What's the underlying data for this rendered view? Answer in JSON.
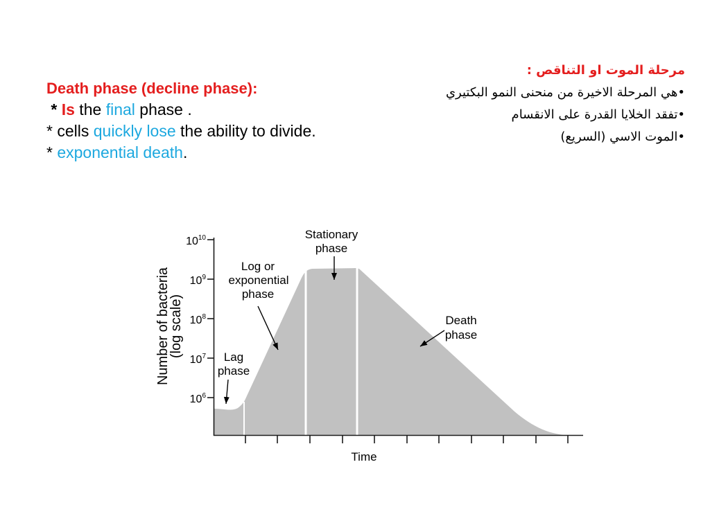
{
  "colors": {
    "emphasis_red": "#e41e1e",
    "highlight_blue": "#1da8df",
    "body_text": "#000000",
    "curve_fill": "#c1c1c1"
  },
  "english_notes": {
    "heading": "Death phase (decline phase):",
    "final_line": {
      "bullet": " * ",
      "keyword": "Is",
      "before": " the ",
      "highlight": "final",
      "after": " phase ."
    },
    "divide_line": {
      "bullet": "* ",
      "before": "cells ",
      "highlight": "quickly lose",
      "after": " the ability to divide."
    },
    "death_line": {
      "bullet": "* ",
      "highlight": "exponential death",
      "after": "."
    }
  },
  "arabic_notes": {
    "heading": "مرحلة الموت او التناقص :",
    "bullets": [
      "•هي المرحلة الاخيرة من منحنى النمو البكتيري",
      "•تفقد الخلايا القدرة على الانقسام",
      "•الموت الاسي (السريع)"
    ]
  },
  "growth_curve": {
    "y_axis_title": "Number of bacteria",
    "y_axis_scale_note": "(log scale)",
    "x_axis_title": "Time",
    "y_tick_labels": [
      {
        "base": "10",
        "exponent": "10"
      },
      {
        "base": "10",
        "exponent": "9"
      },
      {
        "base": "10",
        "exponent": "8"
      },
      {
        "base": "10",
        "exponent": "7"
      },
      {
        "base": "10",
        "exponent": "6"
      }
    ],
    "phase_labels": {
      "lag": [
        "Lag",
        "phase"
      ],
      "log": [
        "Log or",
        "exponential",
        "phase"
      ],
      "stationary": [
        "Stationary",
        "phase"
      ],
      "death": [
        "Death",
        "phase"
      ]
    }
  }
}
